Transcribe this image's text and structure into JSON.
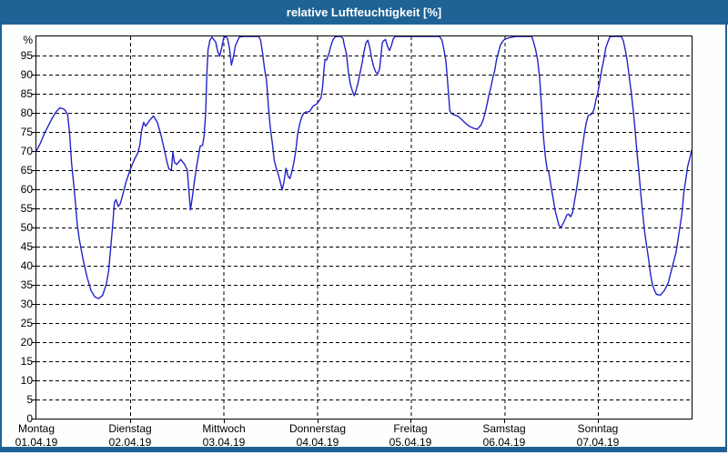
{
  "window": {
    "title": "relative Luftfeuchtigkeit [%]"
  },
  "colors": {
    "chrome": "#1f6396",
    "background": "#fdfffc",
    "plot_background": "#ffffff",
    "grid": "#000000",
    "line": "#2323c8",
    "title_text": "#ffffff",
    "axis_text": "#000000"
  },
  "chart_data": {
    "type": "line",
    "title": "relative Luftfeuchtigkeit [%]",
    "ylabel": "%",
    "ylim": [
      0,
      100
    ],
    "xlim_hours": [
      0,
      168
    ],
    "grid": "dashed",
    "legend": "none",
    "y_ticks": [
      0,
      5,
      10,
      15,
      20,
      25,
      30,
      35,
      40,
      45,
      50,
      55,
      60,
      65,
      70,
      75,
      80,
      85,
      90,
      95
    ],
    "x_ticks": [
      {
        "hour": 0,
        "label": "Montag",
        "date": "01.04.19"
      },
      {
        "hour": 24,
        "label": "Dienstag",
        "date": "02.04.19"
      },
      {
        "hour": 48,
        "label": "Mittwoch",
        "date": "03.04.19"
      },
      {
        "hour": 72,
        "label": "Donnerstag",
        "date": "04.04.19"
      },
      {
        "hour": 96,
        "label": "Freitag",
        "date": "05.04.19"
      },
      {
        "hour": 120,
        "label": "Samstag",
        "date": "06.04.19"
      },
      {
        "hour": 144,
        "label": "Sonntag",
        "date": "07.04.19"
      }
    ],
    "series": [
      {
        "name": "relative Luftfeuchtigkeit",
        "unit": "%",
        "x_unit": "hours since Mon 01.04.19 00:00",
        "points": [
          [
            0,
            70
          ],
          [
            1,
            72
          ],
          [
            2,
            74.5
          ],
          [
            3,
            76.5
          ],
          [
            4,
            78.5
          ],
          [
            5,
            80.2
          ],
          [
            6,
            81.3
          ],
          [
            7,
            81
          ],
          [
            7.5,
            80.5
          ],
          [
            8,
            79.5
          ],
          [
            8.5,
            75
          ],
          [
            9,
            67
          ],
          [
            9.5,
            62
          ],
          [
            10,
            56.5
          ],
          [
            10.5,
            50.5
          ],
          [
            11,
            47
          ],
          [
            12,
            41.5
          ],
          [
            13,
            37
          ],
          [
            14,
            33.5
          ],
          [
            15,
            31.8
          ],
          [
            16,
            31.4
          ],
          [
            17,
            32.3
          ],
          [
            18,
            35.5
          ],
          [
            18.5,
            38.5
          ],
          [
            19,
            44
          ],
          [
            19.5,
            50
          ],
          [
            20,
            56.5
          ],
          [
            20.4,
            57.3
          ],
          [
            21,
            55.5
          ],
          [
            21.5,
            56.2
          ],
          [
            22,
            58
          ],
          [
            23,
            62
          ],
          [
            24,
            65
          ],
          [
            25,
            67.5
          ],
          [
            26,
            69.5
          ],
          [
            26.5,
            71.5
          ],
          [
            27,
            75.5
          ],
          [
            27.5,
            77.5
          ],
          [
            28,
            76.5
          ],
          [
            29,
            78
          ],
          [
            30,
            79.2
          ],
          [
            31,
            77.5
          ],
          [
            32,
            74
          ],
          [
            33,
            69.5
          ],
          [
            33.5,
            67
          ],
          [
            34,
            65.3
          ],
          [
            34.6,
            65
          ],
          [
            35,
            69.8
          ],
          [
            35.4,
            67
          ],
          [
            36,
            66.5
          ],
          [
            37,
            67.8
          ],
          [
            38,
            66.5
          ],
          [
            38.7,
            65
          ],
          [
            39,
            61
          ],
          [
            39.5,
            54.6
          ],
          [
            40,
            58
          ],
          [
            40.5,
            62
          ],
          [
            41,
            65.5
          ],
          [
            41.5,
            68.5
          ],
          [
            42,
            71.3
          ],
          [
            42.6,
            71.5
          ],
          [
            43,
            74
          ],
          [
            43.4,
            80
          ],
          [
            43.7,
            90
          ],
          [
            44,
            96.5
          ],
          [
            44.5,
            99
          ],
          [
            45,
            99.8
          ],
          [
            46,
            98.5
          ],
          [
            46.5,
            96
          ],
          [
            47,
            94.8
          ],
          [
            47.5,
            97
          ],
          [
            48,
            99.5
          ],
          [
            48.5,
            100
          ],
          [
            49,
            99.5
          ],
          [
            49.5,
            97
          ],
          [
            50,
            92.5
          ],
          [
            50.5,
            94.5
          ],
          [
            51,
            97.5
          ],
          [
            52,
            99.8
          ],
          [
            53,
            100
          ],
          [
            54,
            100
          ],
          [
            55,
            100
          ],
          [
            56,
            100
          ],
          [
            57,
            100
          ],
          [
            57.5,
            99
          ],
          [
            58,
            95.5
          ],
          [
            58.5,
            91.5
          ],
          [
            59,
            88.5
          ],
          [
            59.5,
            81.5
          ],
          [
            60,
            76
          ],
          [
            60.5,
            72
          ],
          [
            61,
            67.5
          ],
          [
            61.5,
            65.5
          ],
          [
            62,
            64
          ],
          [
            62.5,
            62
          ],
          [
            63,
            59.8
          ],
          [
            63.5,
            62
          ],
          [
            64,
            65.5
          ],
          [
            64.5,
            63.5
          ],
          [
            65,
            62.8
          ],
          [
            65.5,
            64.5
          ],
          [
            66,
            67
          ],
          [
            66.5,
            70
          ],
          [
            67,
            74.5
          ],
          [
            67.5,
            77
          ],
          [
            68,
            78.8
          ],
          [
            68.5,
            79.8
          ],
          [
            69,
            80.2
          ],
          [
            70,
            80.3
          ],
          [
            71,
            81.8
          ],
          [
            72,
            82.4
          ],
          [
            72.5,
            83.2
          ],
          [
            73,
            84
          ],
          [
            73.4,
            87
          ],
          [
            73.7,
            91
          ],
          [
            74,
            94
          ],
          [
            74.4,
            93.8
          ],
          [
            75,
            95.5
          ],
          [
            75.5,
            97.5
          ],
          [
            76,
            99
          ],
          [
            76.5,
            99.8
          ],
          [
            77,
            100
          ],
          [
            78,
            100
          ],
          [
            78.6,
            99.5
          ],
          [
            79,
            97.5
          ],
          [
            79.5,
            95.5
          ],
          [
            80,
            90.5
          ],
          [
            80.5,
            87.5
          ],
          [
            81,
            85.8
          ],
          [
            81.5,
            84.5
          ],
          [
            82,
            86
          ],
          [
            82.5,
            88
          ],
          [
            83,
            90.5
          ],
          [
            83.5,
            93
          ],
          [
            84,
            96
          ],
          [
            84.5,
            98.3
          ],
          [
            85,
            99
          ],
          [
            85.5,
            97
          ],
          [
            86,
            94
          ],
          [
            86.5,
            92
          ],
          [
            87,
            90.7
          ],
          [
            87.5,
            90.2
          ],
          [
            88,
            91.5
          ],
          [
            88.4,
            95.5
          ],
          [
            88.7,
            98.3
          ],
          [
            89,
            98.8
          ],
          [
            89.5,
            99.2
          ],
          [
            90,
            97.5
          ],
          [
            90.5,
            96.3
          ],
          [
            91,
            97.5
          ],
          [
            91.5,
            99.3
          ],
          [
            92,
            100
          ],
          [
            94,
            100
          ],
          [
            96,
            100
          ],
          [
            98,
            100
          ],
          [
            100,
            100
          ],
          [
            102,
            100
          ],
          [
            103.4,
            100
          ],
          [
            104,
            99
          ],
          [
            104.5,
            96.5
          ],
          [
            105,
            93.5
          ],
          [
            105.5,
            87.5
          ],
          [
            106,
            80.5
          ],
          [
            106.5,
            79.8
          ],
          [
            107,
            79.5
          ],
          [
            108,
            79.2
          ],
          [
            109,
            78.3
          ],
          [
            110,
            77.3
          ],
          [
            111,
            76.5
          ],
          [
            112,
            76
          ],
          [
            113,
            75.7
          ],
          [
            114,
            76.8
          ],
          [
            114.5,
            78
          ],
          [
            115,
            79.8
          ],
          [
            115.5,
            82
          ],
          [
            116,
            84.5
          ],
          [
            116.5,
            86.5
          ],
          [
            117,
            89
          ],
          [
            117.5,
            91
          ],
          [
            118,
            94
          ],
          [
            118.5,
            96
          ],
          [
            119,
            97.8
          ],
          [
            119.5,
            98.6
          ],
          [
            120,
            99.2
          ],
          [
            121,
            99.6
          ],
          [
            122,
            99.8
          ],
          [
            123,
            100
          ],
          [
            124,
            100
          ],
          [
            125,
            100
          ],
          [
            126,
            100
          ],
          [
            127,
            100
          ],
          [
            127.5,
            98.5
          ],
          [
            128,
            96.5
          ],
          [
            128.5,
            94
          ],
          [
            129,
            89.5
          ],
          [
            129.5,
            82
          ],
          [
            130,
            74
          ],
          [
            130.5,
            68.5
          ],
          [
            131,
            65
          ],
          [
            131.4,
            64.5
          ],
          [
            132,
            60.5
          ],
          [
            132.5,
            57.5
          ],
          [
            133,
            54.5
          ],
          [
            133.5,
            52.5
          ],
          [
            134,
            50.5
          ],
          [
            134.5,
            50
          ],
          [
            135,
            51
          ],
          [
            135.5,
            52
          ],
          [
            136,
            53.3
          ],
          [
            136.5,
            53.5
          ],
          [
            137,
            52.8
          ],
          [
            137.5,
            54
          ],
          [
            138,
            57
          ],
          [
            138.5,
            60
          ],
          [
            139,
            63.5
          ],
          [
            139.5,
            67
          ],
          [
            140,
            71
          ],
          [
            140.5,
            74.5
          ],
          [
            141,
            77.5
          ],
          [
            141.5,
            79.3
          ],
          [
            142,
            79.5
          ],
          [
            142.5,
            79.8
          ],
          [
            143,
            81
          ],
          [
            143.5,
            83.5
          ],
          [
            144,
            85.5
          ],
          [
            144.5,
            88.5
          ],
          [
            145,
            91.5
          ],
          [
            145.5,
            94
          ],
          [
            146,
            97
          ],
          [
            146.5,
            98.5
          ],
          [
            147,
            99.8
          ],
          [
            147.5,
            100
          ],
          [
            148.5,
            100
          ],
          [
            149.5,
            100
          ],
          [
            150,
            100
          ],
          [
            150.5,
            98.8
          ],
          [
            151,
            96.5
          ],
          [
            151.5,
            93.5
          ],
          [
            152,
            89.5
          ],
          [
            152.5,
            85.5
          ],
          [
            153,
            81
          ],
          [
            153.5,
            75.5
          ],
          [
            154,
            69.5
          ],
          [
            154.5,
            64.5
          ],
          [
            155,
            58.5
          ],
          [
            155.5,
            53.5
          ],
          [
            156,
            48.5
          ],
          [
            156.5,
            45
          ],
          [
            157,
            41.5
          ],
          [
            157.5,
            37.5
          ],
          [
            158,
            35
          ],
          [
            158.5,
            33.5
          ],
          [
            159,
            32.5
          ],
          [
            160,
            32.3
          ],
          [
            161,
            33.5
          ],
          [
            162,
            35.5
          ],
          [
            163,
            39.5
          ],
          [
            164,
            43.5
          ],
          [
            165,
            50
          ],
          [
            165.5,
            53.5
          ],
          [
            166,
            59
          ],
          [
            166.5,
            62.5
          ],
          [
            167,
            66
          ],
          [
            167.5,
            68
          ],
          [
            168,
            70.2
          ]
        ]
      }
    ]
  }
}
